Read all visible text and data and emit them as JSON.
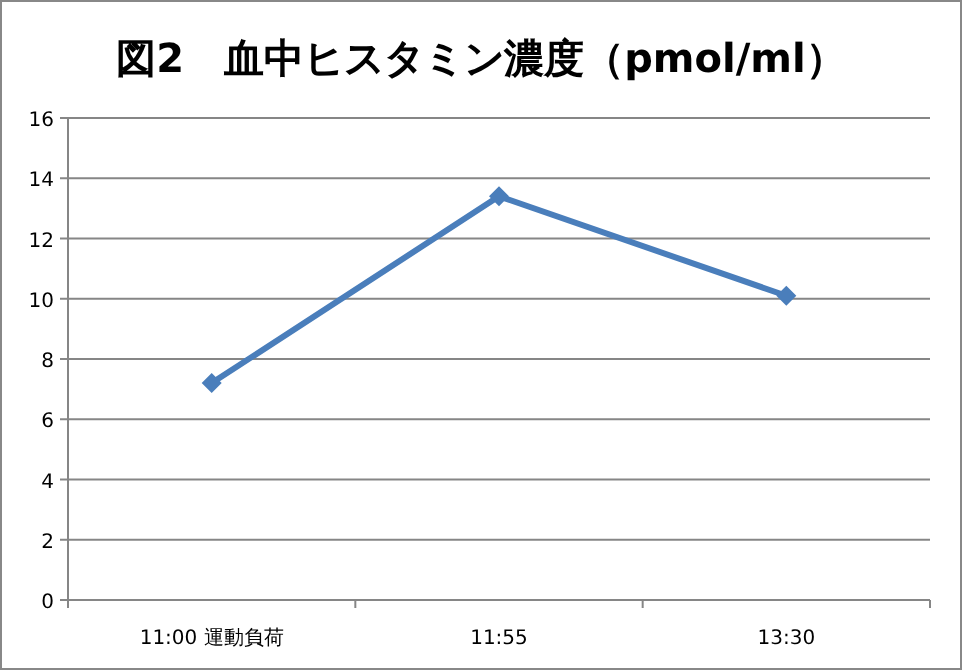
{
  "chart_data": {
    "type": "line",
    "title": "図2　血中ヒスタミン濃度（pmol/ml）",
    "categories": [
      "11:00 運動負荷",
      "11:55",
      "13:30"
    ],
    "series": [
      {
        "color": "#4a7ebb",
        "values": [
          7.2,
          13.4,
          10.1
        ]
      }
    ],
    "ylim": [
      0,
      16
    ],
    "yticks": [
      0,
      2,
      4,
      6,
      8,
      10,
      12,
      14,
      16
    ],
    "grid": "y",
    "marker": "diamond",
    "line_style": "solid"
  }
}
